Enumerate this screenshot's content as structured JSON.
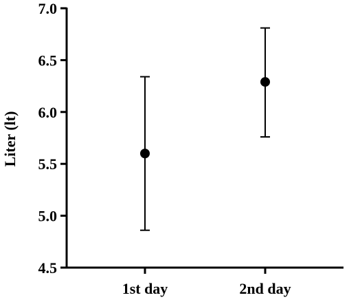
{
  "chart_data": {
    "type": "scatter",
    "title": "",
    "xlabel": "",
    "ylabel": "Liter (lt)",
    "categories": [
      "1st day",
      "2nd day"
    ],
    "series": [
      {
        "values": [
          5.6,
          6.29
        ],
        "error_low": [
          4.86,
          5.76
        ],
        "error_high": [
          6.34,
          6.81
        ]
      }
    ],
    "ylim": [
      4.5,
      7.0
    ],
    "yticks": [
      "4.5",
      "5.0",
      "5.5",
      "6.0",
      "6.5",
      "7.0"
    ],
    "grid": false,
    "legend": "none",
    "marker_color": "#000000"
  }
}
